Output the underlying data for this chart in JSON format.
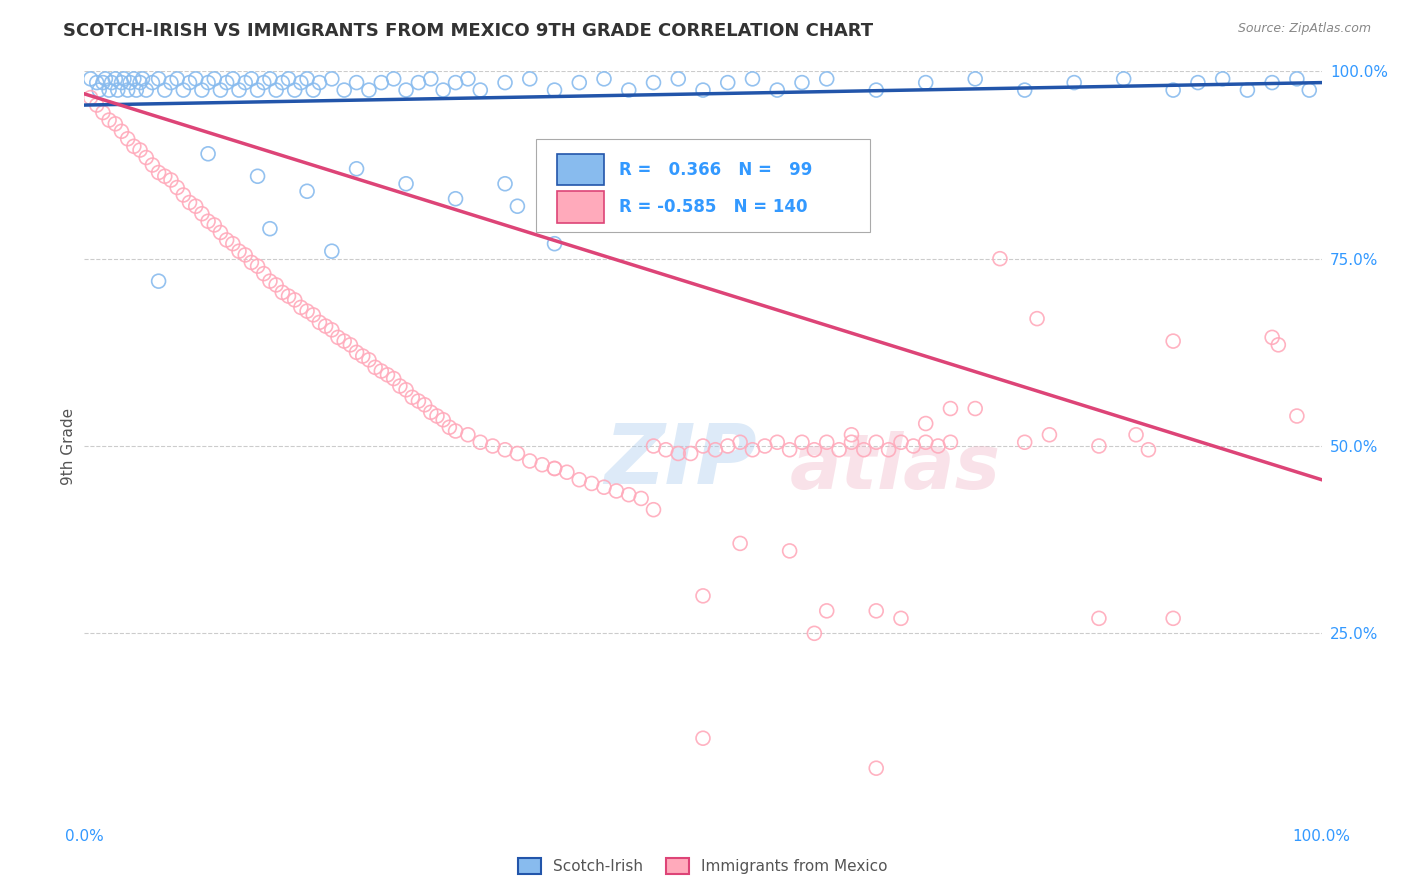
{
  "title": "SCOTCH-IRISH VS IMMIGRANTS FROM MEXICO 9TH GRADE CORRELATION CHART",
  "source": "Source: ZipAtlas.com",
  "ylabel": "9th Grade",
  "xlim": [
    0.0,
    1.0
  ],
  "ylim": [
    0.0,
    1.0
  ],
  "ytick_positions": [
    0.0,
    0.25,
    0.5,
    0.75,
    1.0
  ],
  "ytick_labels": [
    "",
    "25.0%",
    "50.0%",
    "75.0%",
    "100.0%"
  ],
  "xtick_positions": [
    0.0,
    1.0
  ],
  "xtick_labels": [
    "0.0%",
    "100.0%"
  ],
  "grid_color": "#cccccc",
  "background_color": "#ffffff",
  "blue_R": 0.366,
  "blue_N": 99,
  "pink_R": -0.585,
  "pink_N": 140,
  "blue_color": "#88bbee",
  "pink_color": "#ffaabb",
  "blue_line_color": "#2255aa",
  "pink_line_color": "#dd4477",
  "legend_label_blue": "Scotch-Irish",
  "legend_label_pink": "Immigrants from Mexico",
  "blue_trend_x": [
    0.0,
    1.0
  ],
  "blue_trend_y": [
    0.955,
    0.985
  ],
  "pink_trend_x": [
    0.0,
    1.0
  ],
  "pink_trend_y": [
    0.97,
    0.455
  ],
  "blue_scatter": [
    [
      0.005,
      0.99
    ],
    [
      0.01,
      0.985
    ],
    [
      0.012,
      0.975
    ],
    [
      0.015,
      0.985
    ],
    [
      0.017,
      0.99
    ],
    [
      0.02,
      0.975
    ],
    [
      0.022,
      0.985
    ],
    [
      0.025,
      0.99
    ],
    [
      0.027,
      0.975
    ],
    [
      0.03,
      0.985
    ],
    [
      0.032,
      0.99
    ],
    [
      0.035,
      0.975
    ],
    [
      0.037,
      0.985
    ],
    [
      0.04,
      0.99
    ],
    [
      0.042,
      0.975
    ],
    [
      0.045,
      0.985
    ],
    [
      0.047,
      0.99
    ],
    [
      0.05,
      0.975
    ],
    [
      0.055,
      0.985
    ],
    [
      0.06,
      0.99
    ],
    [
      0.065,
      0.975
    ],
    [
      0.07,
      0.985
    ],
    [
      0.075,
      0.99
    ],
    [
      0.08,
      0.975
    ],
    [
      0.085,
      0.985
    ],
    [
      0.09,
      0.99
    ],
    [
      0.095,
      0.975
    ],
    [
      0.1,
      0.985
    ],
    [
      0.105,
      0.99
    ],
    [
      0.11,
      0.975
    ],
    [
      0.115,
      0.985
    ],
    [
      0.12,
      0.99
    ],
    [
      0.125,
      0.975
    ],
    [
      0.13,
      0.985
    ],
    [
      0.135,
      0.99
    ],
    [
      0.14,
      0.975
    ],
    [
      0.145,
      0.985
    ],
    [
      0.15,
      0.99
    ],
    [
      0.155,
      0.975
    ],
    [
      0.16,
      0.985
    ],
    [
      0.165,
      0.99
    ],
    [
      0.17,
      0.975
    ],
    [
      0.175,
      0.985
    ],
    [
      0.18,
      0.99
    ],
    [
      0.185,
      0.975
    ],
    [
      0.19,
      0.985
    ],
    [
      0.2,
      0.99
    ],
    [
      0.21,
      0.975
    ],
    [
      0.22,
      0.985
    ],
    [
      0.23,
      0.975
    ],
    [
      0.24,
      0.985
    ],
    [
      0.25,
      0.99
    ],
    [
      0.26,
      0.975
    ],
    [
      0.27,
      0.985
    ],
    [
      0.28,
      0.99
    ],
    [
      0.29,
      0.975
    ],
    [
      0.3,
      0.985
    ],
    [
      0.31,
      0.99
    ],
    [
      0.32,
      0.975
    ],
    [
      0.34,
      0.985
    ],
    [
      0.36,
      0.99
    ],
    [
      0.38,
      0.975
    ],
    [
      0.4,
      0.985
    ],
    [
      0.42,
      0.99
    ],
    [
      0.44,
      0.975
    ],
    [
      0.46,
      0.985
    ],
    [
      0.48,
      0.99
    ],
    [
      0.5,
      0.975
    ],
    [
      0.52,
      0.985
    ],
    [
      0.54,
      0.99
    ],
    [
      0.56,
      0.975
    ],
    [
      0.58,
      0.985
    ],
    [
      0.6,
      0.99
    ],
    [
      0.64,
      0.975
    ],
    [
      0.68,
      0.985
    ],
    [
      0.72,
      0.99
    ],
    [
      0.76,
      0.975
    ],
    [
      0.8,
      0.985
    ],
    [
      0.84,
      0.99
    ],
    [
      0.88,
      0.975
    ],
    [
      0.9,
      0.985
    ],
    [
      0.92,
      0.99
    ],
    [
      0.94,
      0.975
    ],
    [
      0.96,
      0.985
    ],
    [
      0.98,
      0.99
    ],
    [
      0.99,
      0.975
    ],
    [
      0.1,
      0.89
    ],
    [
      0.14,
      0.86
    ],
    [
      0.18,
      0.84
    ],
    [
      0.22,
      0.87
    ],
    [
      0.26,
      0.85
    ],
    [
      0.3,
      0.83
    ],
    [
      0.34,
      0.85
    ],
    [
      0.38,
      0.83
    ],
    [
      0.06,
      0.72
    ],
    [
      0.15,
      0.79
    ],
    [
      0.35,
      0.82
    ],
    [
      0.43,
      0.84
    ],
    [
      0.49,
      0.87
    ],
    [
      0.55,
      0.84
    ],
    [
      0.2,
      0.76
    ],
    [
      0.38,
      0.77
    ]
  ],
  "pink_scatter": [
    [
      0.005,
      0.965
    ],
    [
      0.01,
      0.955
    ],
    [
      0.015,
      0.945
    ],
    [
      0.02,
      0.935
    ],
    [
      0.025,
      0.93
    ],
    [
      0.03,
      0.92
    ],
    [
      0.035,
      0.91
    ],
    [
      0.04,
      0.9
    ],
    [
      0.045,
      0.895
    ],
    [
      0.05,
      0.885
    ],
    [
      0.055,
      0.875
    ],
    [
      0.06,
      0.865
    ],
    [
      0.065,
      0.86
    ],
    [
      0.07,
      0.855
    ],
    [
      0.075,
      0.845
    ],
    [
      0.08,
      0.835
    ],
    [
      0.085,
      0.825
    ],
    [
      0.09,
      0.82
    ],
    [
      0.095,
      0.81
    ],
    [
      0.1,
      0.8
    ],
    [
      0.105,
      0.795
    ],
    [
      0.11,
      0.785
    ],
    [
      0.115,
      0.775
    ],
    [
      0.12,
      0.77
    ],
    [
      0.125,
      0.76
    ],
    [
      0.13,
      0.755
    ],
    [
      0.135,
      0.745
    ],
    [
      0.14,
      0.74
    ],
    [
      0.145,
      0.73
    ],
    [
      0.15,
      0.72
    ],
    [
      0.155,
      0.715
    ],
    [
      0.16,
      0.705
    ],
    [
      0.165,
      0.7
    ],
    [
      0.17,
      0.695
    ],
    [
      0.175,
      0.685
    ],
    [
      0.18,
      0.68
    ],
    [
      0.185,
      0.675
    ],
    [
      0.19,
      0.665
    ],
    [
      0.195,
      0.66
    ],
    [
      0.2,
      0.655
    ],
    [
      0.205,
      0.645
    ],
    [
      0.21,
      0.64
    ],
    [
      0.215,
      0.635
    ],
    [
      0.22,
      0.625
    ],
    [
      0.225,
      0.62
    ],
    [
      0.23,
      0.615
    ],
    [
      0.235,
      0.605
    ],
    [
      0.24,
      0.6
    ],
    [
      0.245,
      0.595
    ],
    [
      0.25,
      0.59
    ],
    [
      0.255,
      0.58
    ],
    [
      0.26,
      0.575
    ],
    [
      0.265,
      0.565
    ],
    [
      0.27,
      0.56
    ],
    [
      0.275,
      0.555
    ],
    [
      0.28,
      0.545
    ],
    [
      0.285,
      0.54
    ],
    [
      0.29,
      0.535
    ],
    [
      0.295,
      0.525
    ],
    [
      0.3,
      0.52
    ],
    [
      0.31,
      0.515
    ],
    [
      0.32,
      0.505
    ],
    [
      0.33,
      0.5
    ],
    [
      0.34,
      0.495
    ],
    [
      0.35,
      0.49
    ],
    [
      0.36,
      0.48
    ],
    [
      0.37,
      0.475
    ],
    [
      0.38,
      0.47
    ],
    [
      0.39,
      0.465
    ],
    [
      0.4,
      0.455
    ],
    [
      0.41,
      0.45
    ],
    [
      0.42,
      0.445
    ],
    [
      0.43,
      0.44
    ],
    [
      0.44,
      0.435
    ],
    [
      0.45,
      0.43
    ],
    [
      0.46,
      0.5
    ],
    [
      0.47,
      0.495
    ],
    [
      0.48,
      0.49
    ],
    [
      0.49,
      0.49
    ],
    [
      0.5,
      0.5
    ],
    [
      0.51,
      0.495
    ],
    [
      0.52,
      0.5
    ],
    [
      0.53,
      0.505
    ],
    [
      0.54,
      0.495
    ],
    [
      0.55,
      0.5
    ],
    [
      0.56,
      0.505
    ],
    [
      0.57,
      0.495
    ],
    [
      0.58,
      0.505
    ],
    [
      0.59,
      0.495
    ],
    [
      0.6,
      0.505
    ],
    [
      0.61,
      0.495
    ],
    [
      0.62,
      0.505
    ],
    [
      0.63,
      0.495
    ],
    [
      0.64,
      0.505
    ],
    [
      0.65,
      0.495
    ],
    [
      0.66,
      0.505
    ],
    [
      0.67,
      0.5
    ],
    [
      0.68,
      0.505
    ],
    [
      0.69,
      0.5
    ],
    [
      0.7,
      0.505
    ],
    [
      0.53,
      0.37
    ],
    [
      0.57,
      0.36
    ],
    [
      0.5,
      0.3
    ],
    [
      0.6,
      0.28
    ],
    [
      0.64,
      0.28
    ],
    [
      0.66,
      0.27
    ],
    [
      0.5,
      0.11
    ],
    [
      0.64,
      0.07
    ],
    [
      0.59,
      0.25
    ],
    [
      0.82,
      0.27
    ],
    [
      0.88,
      0.27
    ],
    [
      0.76,
      0.505
    ],
    [
      0.82,
      0.5
    ],
    [
      0.86,
      0.495
    ],
    [
      0.77,
      0.67
    ],
    [
      0.96,
      0.645
    ],
    [
      0.74,
      0.75
    ],
    [
      0.88,
      0.64
    ],
    [
      0.965,
      0.635
    ],
    [
      0.98,
      0.54
    ],
    [
      0.85,
      0.515
    ],
    [
      0.78,
      0.515
    ],
    [
      0.72,
      0.55
    ],
    [
      0.7,
      0.55
    ],
    [
      0.68,
      0.53
    ],
    [
      0.62,
      0.515
    ],
    [
      0.46,
      0.415
    ],
    [
      0.38,
      0.47
    ]
  ]
}
